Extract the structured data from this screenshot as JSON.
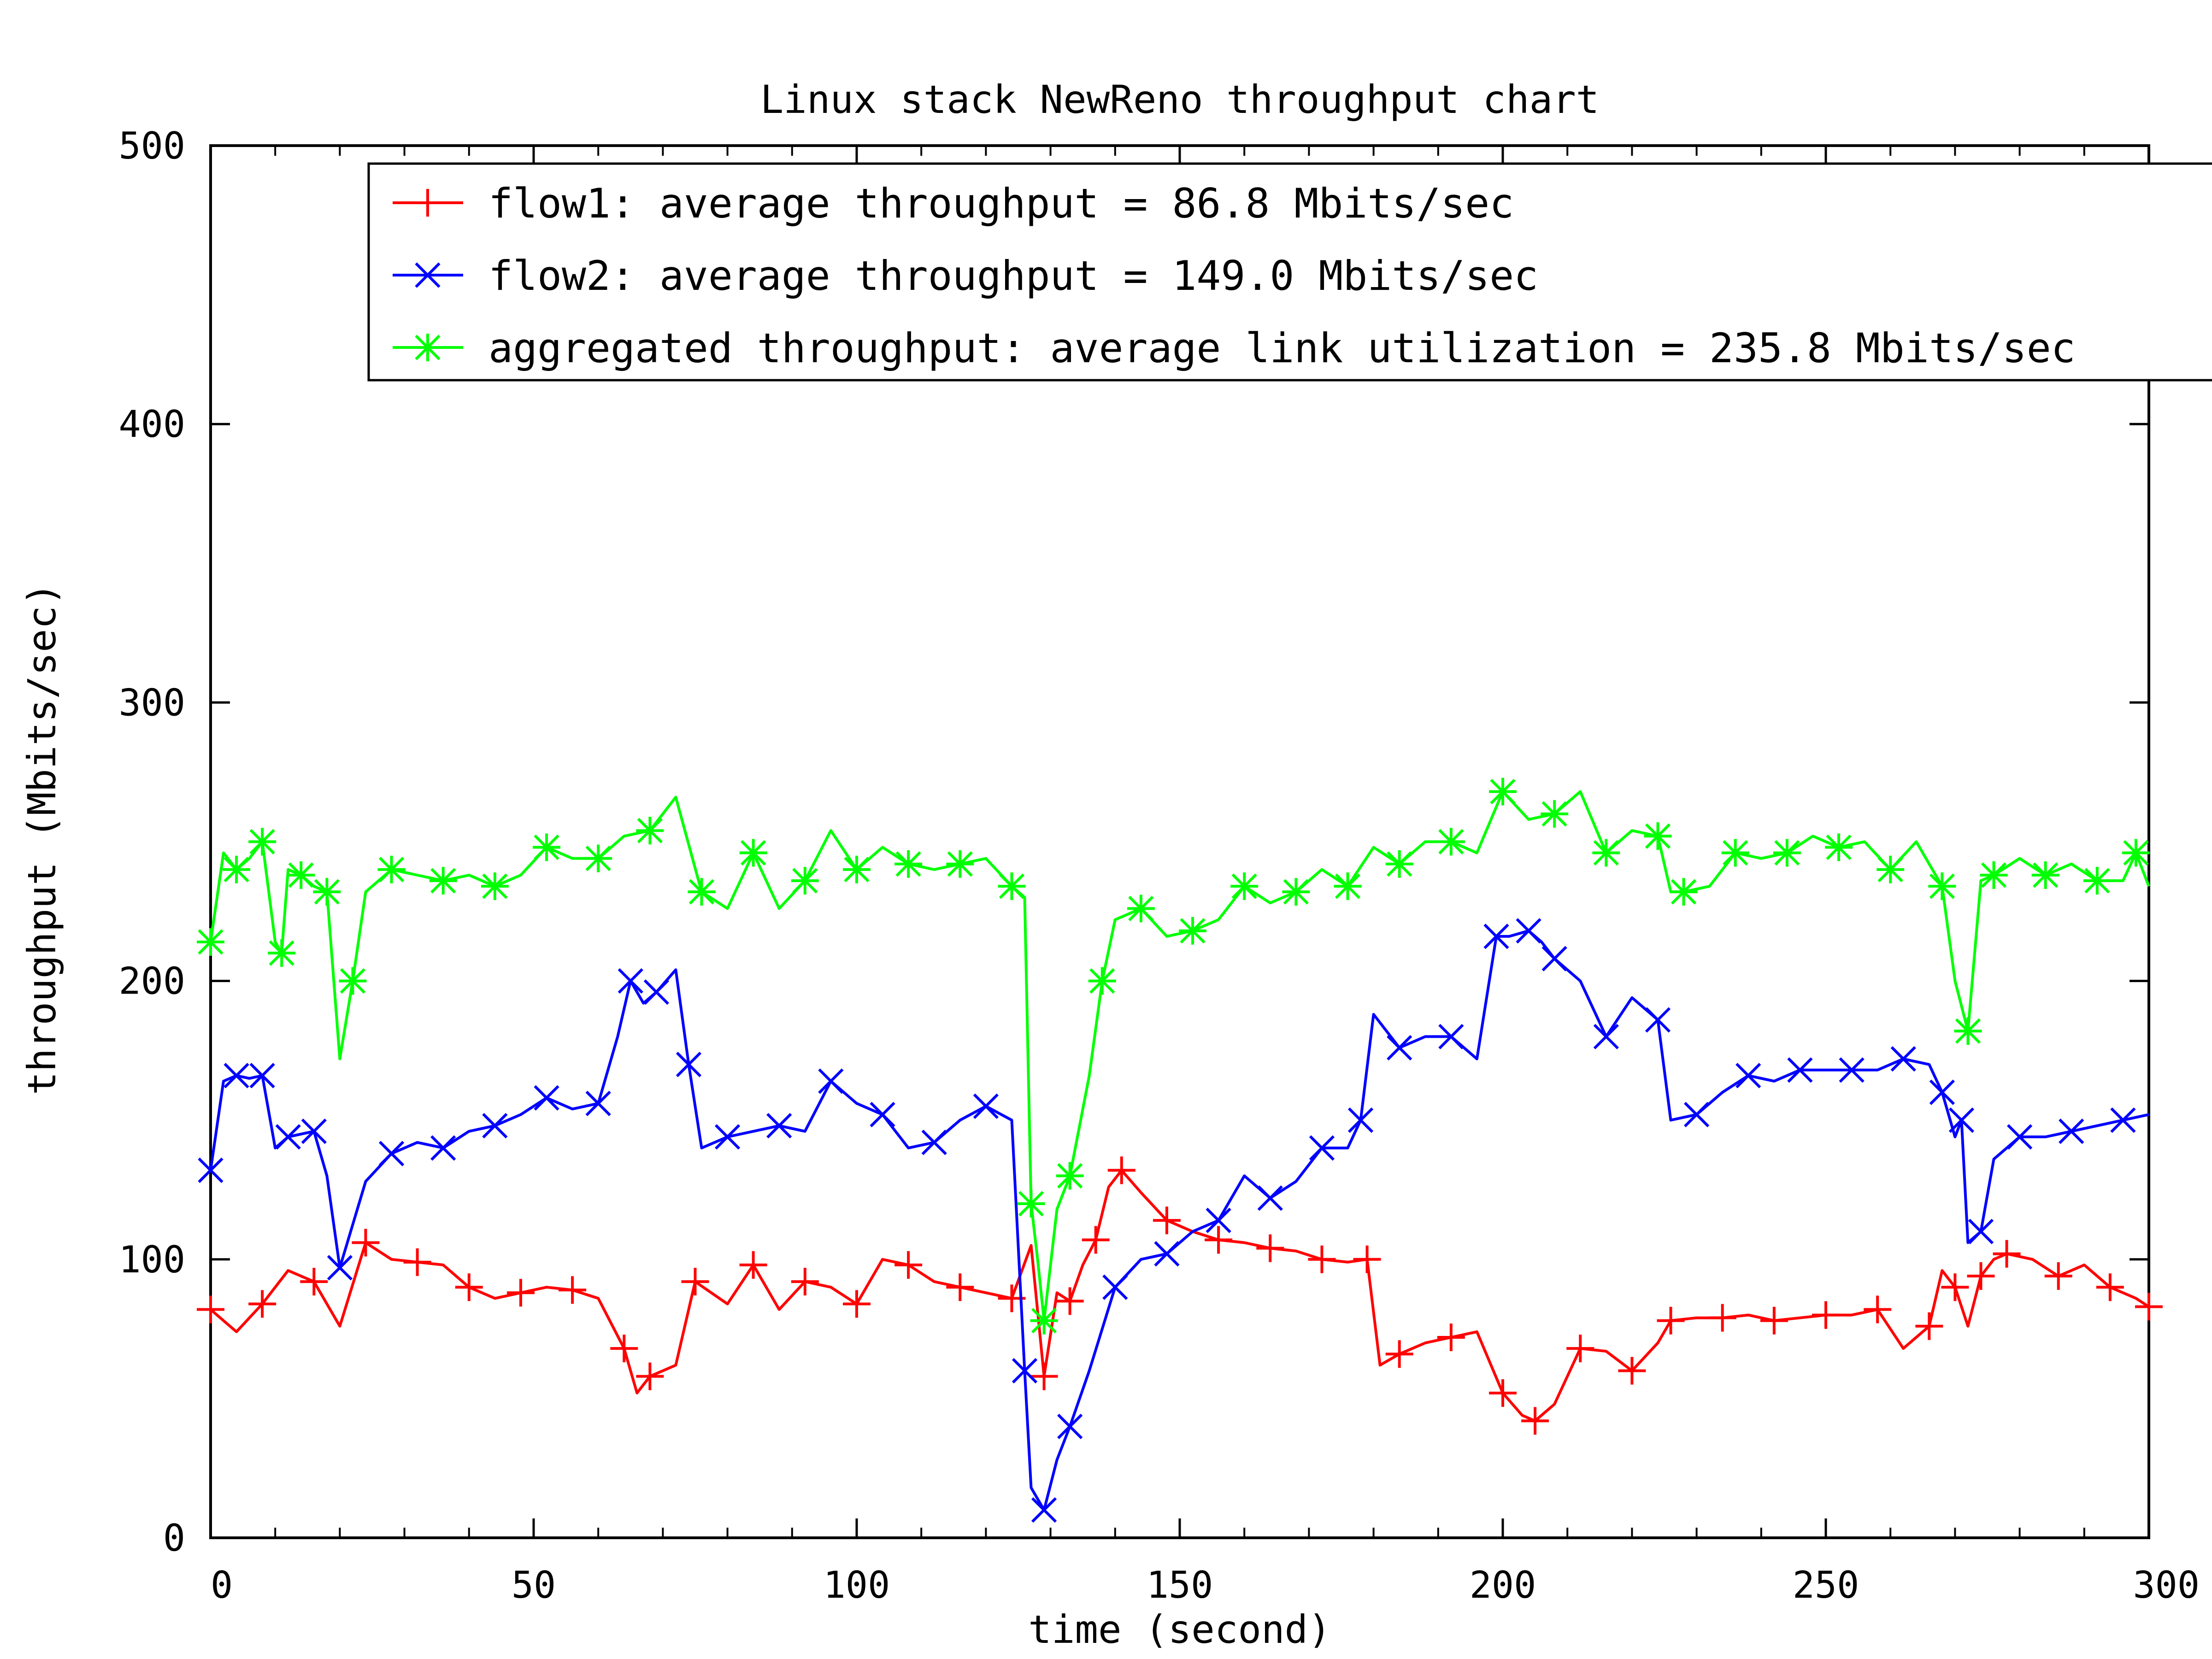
{
  "chart_data": {
    "type": "line",
    "title": "Linux stack NewReno throughput chart",
    "xlabel": "time (second)",
    "ylabel": "throughput (Mbits/sec)",
    "xlim": [
      0,
      300
    ],
    "ylim": [
      0,
      500
    ],
    "x_ticks": [
      0,
      50,
      100,
      150,
      200,
      250,
      300
    ],
    "y_ticks": [
      0,
      100,
      200,
      300,
      400,
      500
    ],
    "grid": false,
    "legend_position": "top-right",
    "series": [
      {
        "name": "flow1: average throughput = 86.8 Mbits/sec",
        "color": "#ff0000",
        "marker": "plus",
        "x": [
          0,
          4,
          8,
          12,
          16,
          20,
          24,
          28,
          32,
          36,
          40,
          44,
          48,
          52,
          56,
          60,
          64,
          66,
          68,
          72,
          75,
          80,
          84,
          88,
          92,
          96,
          100,
          104,
          108,
          112,
          116,
          120,
          124,
          127,
          129,
          131,
          133,
          135,
          137,
          139,
          141,
          144,
          148,
          152,
          156,
          160,
          164,
          168,
          172,
          176,
          179,
          181,
          184,
          188,
          192,
          196,
          200,
          203,
          205,
          208,
          212,
          216,
          220,
          224,
          226,
          230,
          234,
          238,
          242,
          246,
          250,
          254,
          258,
          262,
          266,
          268,
          270,
          272,
          274,
          276,
          278,
          282,
          286,
          290,
          294,
          298,
          300
        ],
        "y": [
          82,
          74,
          84,
          96,
          92,
          76,
          106,
          100,
          99,
          98,
          90,
          86,
          88,
          90,
          89,
          86,
          68,
          52,
          58,
          62,
          92,
          84,
          98,
          82,
          92,
          90,
          84,
          100,
          98,
          92,
          90,
          88,
          86,
          105,
          58,
          88,
          85,
          98,
          107,
          126,
          132,
          124,
          114,
          110,
          107,
          106,
          104,
          103,
          100,
          99,
          100,
          62,
          66,
          70,
          72,
          74,
          52,
          44,
          42,
          48,
          68,
          67,
          60,
          70,
          78,
          79,
          79,
          80,
          78,
          79,
          80,
          80,
          82,
          68,
          76,
          96,
          90,
          76,
          94,
          100,
          102,
          100,
          94,
          98,
          90,
          86,
          83
        ]
      },
      {
        "name": "flow2: average throughput = 149.0 Mbits/sec",
        "color": "#0000ff",
        "marker": "x",
        "x": [
          0,
          2,
          4,
          6,
          8,
          10,
          12,
          14,
          16,
          18,
          20,
          24,
          28,
          32,
          36,
          40,
          44,
          48,
          52,
          56,
          60,
          63,
          65,
          67,
          69,
          72,
          74,
          76,
          80,
          84,
          88,
          92,
          96,
          100,
          104,
          108,
          112,
          116,
          120,
          124,
          126,
          127,
          129,
          131,
          133,
          136,
          140,
          144,
          148,
          152,
          156,
          160,
          164,
          168,
          172,
          176,
          178,
          180,
          184,
          188,
          192,
          196,
          199,
          201,
          204,
          206,
          208,
          212,
          216,
          220,
          224,
          226,
          230,
          234,
          238,
          242,
          246,
          250,
          254,
          258,
          262,
          266,
          268,
          270,
          271,
          272,
          274,
          276,
          280,
          284,
          288,
          292,
          296,
          300
        ],
        "y": [
          132,
          164,
          166,
          165,
          166,
          140,
          144,
          145,
          146,
          130,
          97,
          128,
          138,
          142,
          140,
          146,
          148,
          152,
          158,
          154,
          156,
          180,
          200,
          192,
          196,
          204,
          170,
          140,
          144,
          146,
          148,
          146,
          164,
          156,
          152,
          140,
          142,
          150,
          155,
          150,
          60,
          18,
          10,
          28,
          40,
          60,
          90,
          100,
          102,
          110,
          114,
          130,
          122,
          128,
          140,
          140,
          150,
          188,
          176,
          180,
          180,
          172,
          216,
          216,
          218,
          214,
          208,
          200,
          180,
          194,
          186,
          150,
          152,
          160,
          166,
          164,
          168,
          168,
          168,
          168,
          172,
          170,
          160,
          144,
          150,
          106,
          110,
          136,
          144,
          144,
          146,
          148,
          150,
          152
        ]
      },
      {
        "name": "aggregated throughput: average link utilization = 235.8 Mbits/sec",
        "color": "#00ff00",
        "marker": "star",
        "x": [
          0,
          2,
          4,
          6,
          8,
          10,
          11,
          12,
          14,
          16,
          18,
          20,
          22,
          24,
          28,
          32,
          36,
          40,
          44,
          48,
          52,
          56,
          60,
          64,
          68,
          72,
          76,
          80,
          84,
          88,
          92,
          96,
          100,
          104,
          108,
          112,
          116,
          120,
          124,
          126,
          127,
          128,
          129,
          131,
          133,
          136,
          138,
          140,
          144,
          148,
          152,
          156,
          160,
          164,
          168,
          172,
          176,
          180,
          184,
          188,
          192,
          196,
          200,
          204,
          208,
          212,
          216,
          220,
          224,
          226,
          228,
          232,
          236,
          240,
          244,
          248,
          252,
          256,
          260,
          264,
          268,
          270,
          272,
          274,
          276,
          280,
          284,
          288,
          292,
          296,
          298,
          300
        ],
        "y": [
          214,
          246,
          240,
          244,
          250,
          214,
          210,
          240,
          238,
          234,
          232,
          172,
          200,
          232,
          240,
          238,
          236,
          238,
          234,
          238,
          248,
          244,
          244,
          252,
          254,
          266,
          232,
          226,
          246,
          226,
          236,
          254,
          240,
          248,
          242,
          240,
          242,
          244,
          234,
          230,
          120,
          100,
          78,
          118,
          130,
          166,
          200,
          222,
          226,
          216,
          218,
          222,
          234,
          228,
          232,
          240,
          234,
          248,
          242,
          250,
          250,
          246,
          268,
          258,
          260,
          268,
          246,
          254,
          252,
          232,
          232,
          234,
          246,
          244,
          246,
          252,
          248,
          250,
          240,
          250,
          234,
          200,
          182,
          236,
          238,
          244,
          238,
          242,
          236,
          236,
          246,
          234
        ]
      }
    ]
  }
}
